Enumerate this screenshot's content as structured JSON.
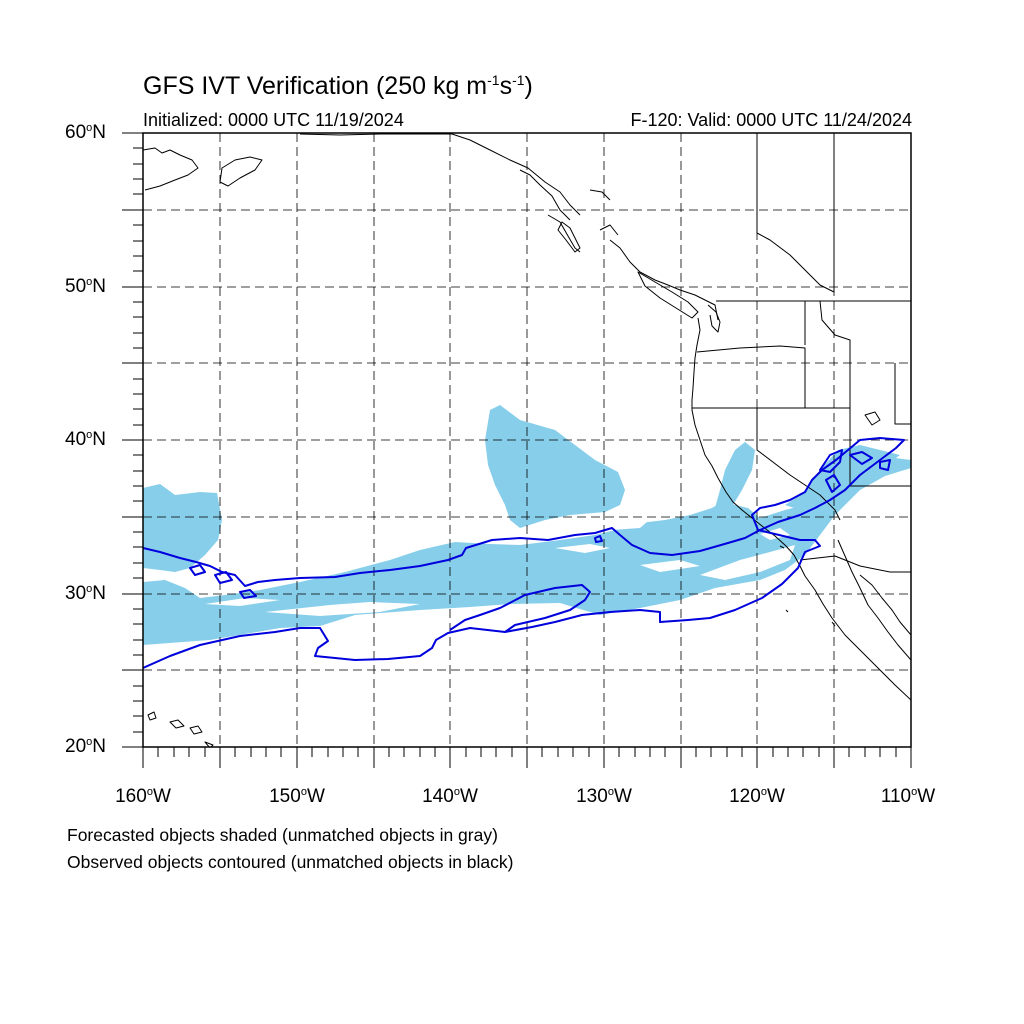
{
  "title": {
    "text": "GFS IVT Verification (250 kg m",
    "exp1": "-1",
    "mid": "s",
    "exp2": "-1",
    "end": ")"
  },
  "initialized": "Initialized: 0000 UTC 11/19/2024",
  "valid": "F-120: Valid: 0000 UTC 11/24/2024",
  "footnotes": [
    "Forecasted objects shaded (unmatched objects in gray)",
    "Observed objects contoured (unmatched objects in black)"
  ],
  "lat_labels": [
    {
      "num": "60",
      "deg": "o",
      "hemi": "N"
    },
    {
      "num": "50",
      "deg": "o",
      "hemi": "N"
    },
    {
      "num": "40",
      "deg": "o",
      "hemi": "N"
    },
    {
      "num": "30",
      "deg": "o",
      "hemi": "N"
    },
    {
      "num": "20",
      "deg": "o",
      "hemi": "N"
    }
  ],
  "lon_labels": [
    {
      "num": "160",
      "deg": "o",
      "hemi": "W"
    },
    {
      "num": "150",
      "deg": "o",
      "hemi": "W"
    },
    {
      "num": "140",
      "deg": "o",
      "hemi": "W"
    },
    {
      "num": "130",
      "deg": "o",
      "hemi": "W"
    },
    {
      "num": "120",
      "deg": "o",
      "hemi": "W"
    },
    {
      "num": "110",
      "deg": "o",
      "hemi": "W"
    }
  ],
  "map": {
    "lon_range": [
      -160,
      -110
    ],
    "lat_range": [
      20,
      60
    ],
    "gridline_spacing_deg": 5,
    "gridline_style": "dashed",
    "colors": {
      "forecast_fill": "#87ceeb",
      "observed_contour": "#0000dd",
      "coastline": "#000000"
    }
  }
}
